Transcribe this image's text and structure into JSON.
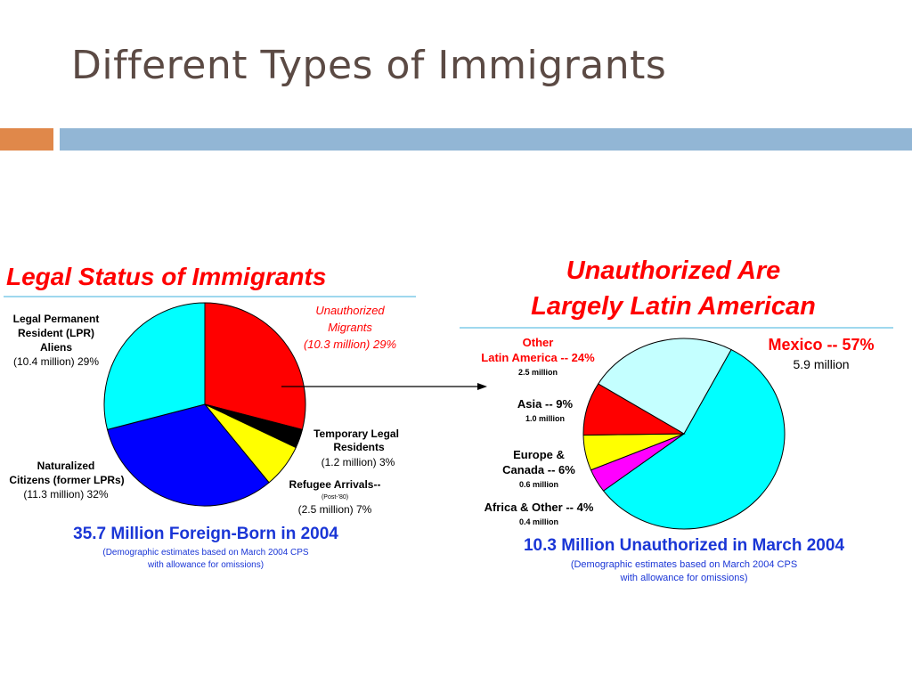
{
  "slide": {
    "title": "Different Types of Immigrants",
    "accent_colors": {
      "orange": "#e0884a",
      "blue": "#92b6d5"
    }
  },
  "chart_data": [
    {
      "type": "pie",
      "title": "Legal Status of Immigrants",
      "subtitle": "35.7 Million Foreign-Born in 2004",
      "note_lines": [
        "(Demographic estimates based on March 2004 CPS",
        "with allowance for omissions)"
      ],
      "slices": [
        {
          "label_lines": [
            "Unauthorized",
            "Migrants"
          ],
          "value_text": "(10.3 million)  29%",
          "value_millions": 10.3,
          "percent": 29,
          "color": "#ff0000",
          "label_color": "#ff0000",
          "label_italic": true
        },
        {
          "label_lines": [
            "Temporary Legal",
            "Residents"
          ],
          "value_text": "(1.2 million)  3%",
          "value_millions": 1.2,
          "percent": 3,
          "color": "#000000",
          "label_color": "#000000"
        },
        {
          "label_lines": [
            "Refugee Arrivals--"
          ],
          "small_line": "(Post-'80)",
          "value_text": "(2.5 million)  7%",
          "value_millions": 2.5,
          "percent": 7,
          "color": "#ffff00",
          "label_color": "#000000"
        },
        {
          "label_lines": [
            "Naturalized",
            "Citizens (former LPRs)"
          ],
          "value_text": "(11.3 million)  32%",
          "value_millions": 11.3,
          "percent": 32,
          "color": "#0000ff",
          "label_color": "#000000"
        },
        {
          "label_lines": [
            "Legal Permanent",
            "Resident (LPR)",
            "Aliens"
          ],
          "value_text": "(10.4 million)  29%",
          "value_millions": 10.4,
          "percent": 29,
          "color": "#00ffff",
          "label_color": "#000000"
        }
      ]
    },
    {
      "type": "pie",
      "title_lines": [
        "Unauthorized Are",
        "Largely Latin American"
      ],
      "subtitle": "10.3 Million Unauthorized in March 2004",
      "note_lines": [
        "(Demographic estimates based on March 2004 CPS",
        "with allowance for omissions)"
      ],
      "slices": [
        {
          "label": "Mexico -- 57%",
          "value_text": "5.9 million",
          "value_millions": 5.9,
          "percent": 57,
          "color": "#00ffff",
          "label_color": "#ff0000"
        },
        {
          "label": "Africa & Other -- 4%",
          "value_text": "0.4 million",
          "value_millions": 0.4,
          "percent": 4,
          "color": "#ff00ff",
          "label_color": "#000000"
        },
        {
          "label_lines": [
            "Europe &",
            "Canada -- 6%"
          ],
          "value_text": "0.6 million",
          "value_millions": 0.6,
          "percent": 6,
          "color": "#ffff00",
          "label_color": "#000000"
        },
        {
          "label": "Asia -- 9%",
          "value_text": "1.0 million",
          "value_millions": 1.0,
          "percent": 9,
          "color": "#ff0000",
          "label_color": "#000000"
        },
        {
          "label_lines": [
            "Other",
            "Latin America -- 24%"
          ],
          "value_text": "2.5 million",
          "value_millions": 2.5,
          "percent": 24,
          "color": "#c4ffff",
          "label_color": "#ff0000"
        }
      ]
    }
  ],
  "colors": {
    "title_red": "#ff0000",
    "subtitle_blue": "#1a36d6",
    "note_blue": "#1a36d6",
    "rule_blue": "#9fd8ee"
  }
}
